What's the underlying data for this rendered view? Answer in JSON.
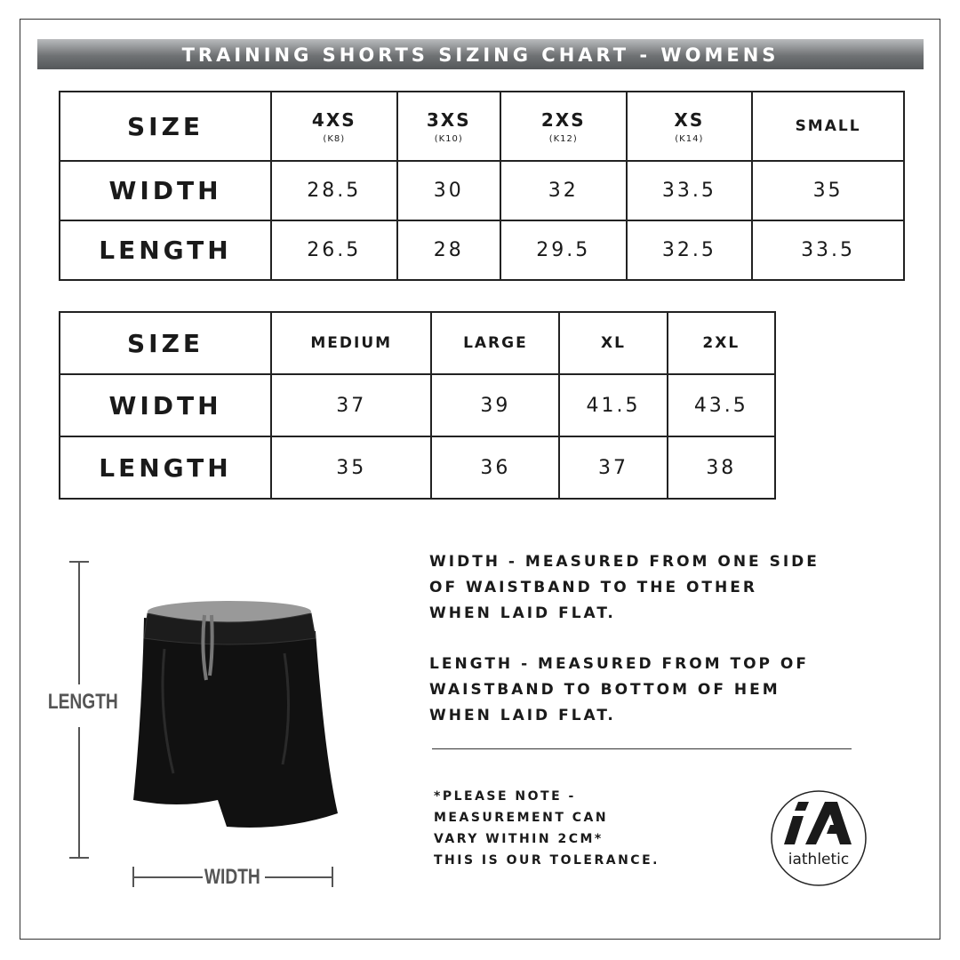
{
  "title": "TRAINING SHORTS SIZING CHART - WOMENS",
  "table1": {
    "header": "SIZE",
    "sizes": [
      {
        "label": "4XS",
        "sub": "(K8)"
      },
      {
        "label": "3XS",
        "sub": "(K10)"
      },
      {
        "label": "2XS",
        "sub": "(K12)"
      },
      {
        "label": "XS",
        "sub": "(K14)"
      },
      {
        "label": "SMALL",
        "sub": ""
      }
    ],
    "rows": [
      {
        "label": "WIDTH",
        "values": [
          "28.5",
          "30",
          "32",
          "33.5",
          "35"
        ]
      },
      {
        "label": "LENGTH",
        "values": [
          "26.5",
          "28",
          "29.5",
          "32.5",
          "33.5"
        ]
      }
    ]
  },
  "table2": {
    "header": "SIZE",
    "sizes": [
      "MEDIUM",
      "LARGE",
      "XL",
      "2XL"
    ],
    "rows": [
      {
        "label": "WIDTH",
        "values": [
          "37",
          "39",
          "41.5",
          "43.5"
        ]
      },
      {
        "label": "LENGTH",
        "values": [
          "35",
          "36",
          "37",
          "38"
        ]
      }
    ]
  },
  "diagram": {
    "length_label": "LENGTH",
    "width_label": "WIDTH"
  },
  "width_desc": [
    "WIDTH - MEASURED FROM ONE SIDE",
    "OF WAISTBAND TO THE OTHER",
    "WHEN LAID FLAT."
  ],
  "length_desc": [
    "LENGTH - MEASURED FROM TOP OF",
    "WAISTBAND TO BOTTOM OF HEM",
    "WHEN LAID FLAT."
  ],
  "note": [
    "*PLEASE NOTE -",
    "MEASUREMENT CAN",
    "VARY WITHIN 2CM*",
    "THIS IS OUR TOLERANCE."
  ],
  "logo": {
    "mark": "iA",
    "text": "iathletic"
  }
}
